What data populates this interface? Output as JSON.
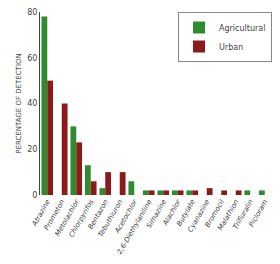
{
  "chart_data": {
    "type": "bar",
    "categories": [
      "Atrazine",
      "Prometon",
      "Metolachlor",
      "Chlorpyrifos",
      "Bentazon",
      "Tebuthiuron",
      "Acetochlor",
      "2,6-Diethylaniline",
      "Simazine",
      "Alachlor",
      "Butylate",
      "Cyanazine",
      "Bromocil",
      "Malathion",
      "Trifluralin",
      "Picloram"
    ],
    "series": [
      {
        "name": "Agricultural",
        "color": "#2e8b2e",
        "values": [
          78,
          0,
          30,
          13,
          3,
          0,
          6,
          2,
          2,
          2,
          2,
          0,
          0,
          0,
          2,
          2
        ]
      },
      {
        "name": "Urban",
        "color": "#8b1a1a",
        "values": [
          50,
          40,
          23,
          6,
          10,
          10,
          0,
          2,
          2,
          2,
          2,
          3,
          2,
          2,
          0,
          0
        ]
      }
    ],
    "ylabel": "PERCENTAGE OF DETECTION",
    "ylim": [
      0,
      80
    ],
    "yticks": [
      0,
      20,
      40,
      60,
      80
    ],
    "grid": false,
    "legend": "upper right"
  }
}
